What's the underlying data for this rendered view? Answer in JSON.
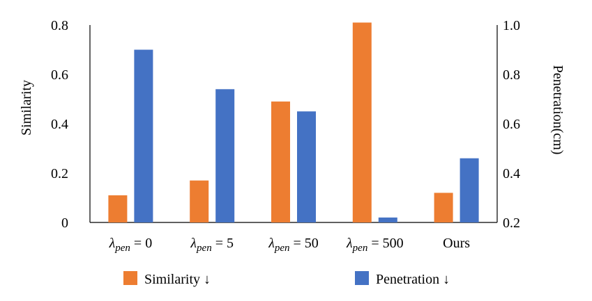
{
  "chart_data": {
    "type": "bar",
    "categories": [
      "λpen = 0",
      "λpen = 5",
      "λpen = 50",
      "λpen = 500",
      "Ours"
    ],
    "category_labels": [
      {
        "main": "λ",
        "sub": "pen",
        "rest": " = 0"
      },
      {
        "main": "λ",
        "sub": "pen",
        "rest": " = 5"
      },
      {
        "main": "λ",
        "sub": "pen",
        "rest": " = 50"
      },
      {
        "main": "λ",
        "sub": "pen",
        "rest": " = 500"
      },
      {
        "main": "",
        "sub": "",
        "rest": "Ours"
      }
    ],
    "series": [
      {
        "name": "Similarity ↓",
        "axis": "left",
        "color": "#ED7D31",
        "values": [
          0.11,
          0.17,
          0.49,
          0.81,
          0.12
        ]
      },
      {
        "name": "Penetration ↓",
        "axis": "right",
        "color": "#4472C4",
        "values": [
          0.9,
          0.74,
          0.65,
          0.22,
          0.46
        ]
      }
    ],
    "ylabel": "Similarity",
    "ylabel_right": "Penetration(cm)",
    "ylim": [
      0,
      0.8
    ],
    "ylim_right": [
      0.2,
      1.0
    ],
    "yticks": [
      "0",
      "0.2",
      "0.4",
      "0.6",
      "0.8"
    ],
    "yticks_right": [
      "0.2",
      "0.4",
      "0.6",
      "0.8",
      "1.0"
    ],
    "legend_position": "bottom",
    "grid": false
  }
}
